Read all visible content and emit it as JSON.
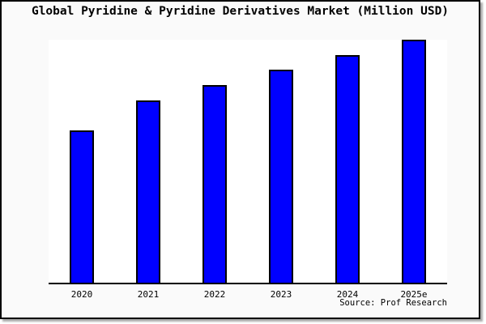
{
  "chart": {
    "source_label": "Source: Prof Research",
    "canvas_background": "#fafafa",
    "plot_background": "#ffffff",
    "frame_border_color": "#000000",
    "bar_fill": "#0000ff",
    "bar_border": "#000000"
  },
  "chart_data": {
    "type": "bar",
    "title": "Global Pyridine & Pyridine Derivatives Market (Million USD)",
    "categories": [
      "2020",
      "2021",
      "2022",
      "2023",
      "2024",
      "2025e"
    ],
    "values": [
      189,
      226,
      245,
      264,
      282,
      301
    ],
    "values_note": "relative units estimated from bar heights; chart shows no y-axis tick labels",
    "xlabel": "",
    "ylabel": "",
    "ylim": [
      0,
      301
    ],
    "grid": false,
    "legend": false,
    "y_axis_visible": false,
    "source": "Source: Prof Research"
  }
}
